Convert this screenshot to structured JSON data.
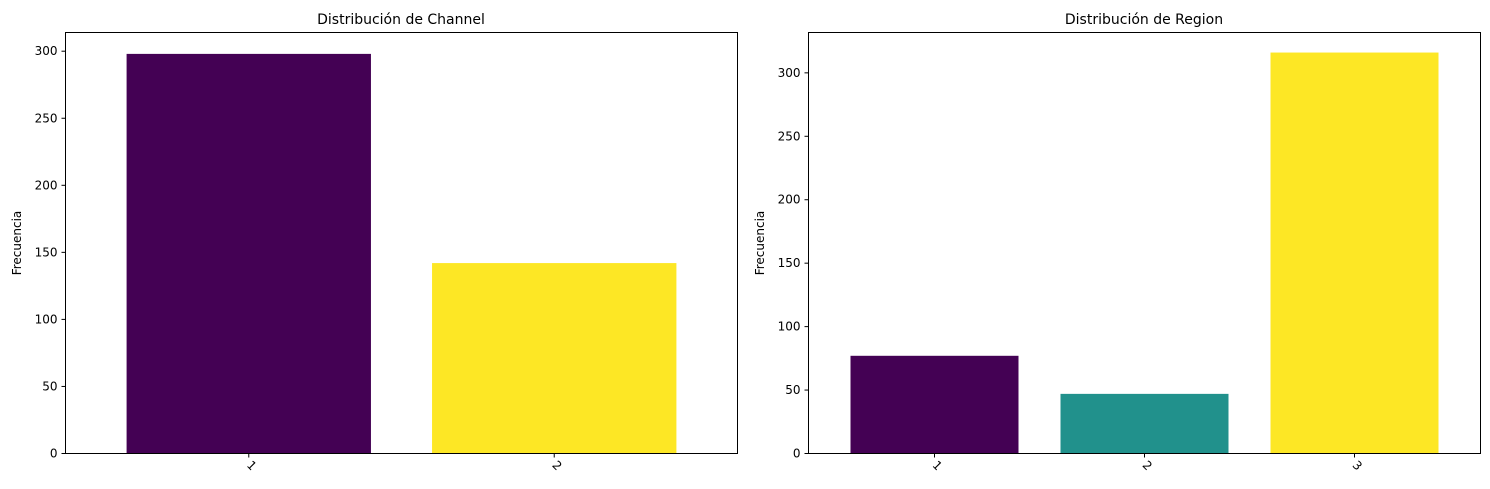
{
  "chart_data": [
    {
      "type": "bar",
      "title": "Distribución de Channel",
      "xlabel": "",
      "ylabel": "Frecuencia",
      "categories": [
        "1",
        "2"
      ],
      "values": [
        298,
        142
      ],
      "colors": [
        "#440154",
        "#fde725"
      ],
      "ylim": [
        0,
        313.95
      ],
      "yticks": [
        0,
        50,
        100,
        150,
        200,
        250,
        300
      ],
      "xtick_rotation": 45,
      "grid": false
    },
    {
      "type": "bar",
      "title": "Distribución de Region",
      "xlabel": "",
      "ylabel": "Frecuencia",
      "categories": [
        "1",
        "2",
        "3"
      ],
      "values": [
        77,
        47,
        316
      ],
      "colors": [
        "#440154",
        "#21918c",
        "#fde725"
      ],
      "ylim": [
        0,
        331.8
      ],
      "yticks": [
        0,
        50,
        100,
        150,
        200,
        250,
        300
      ],
      "xtick_rotation": 45,
      "grid": false
    }
  ]
}
